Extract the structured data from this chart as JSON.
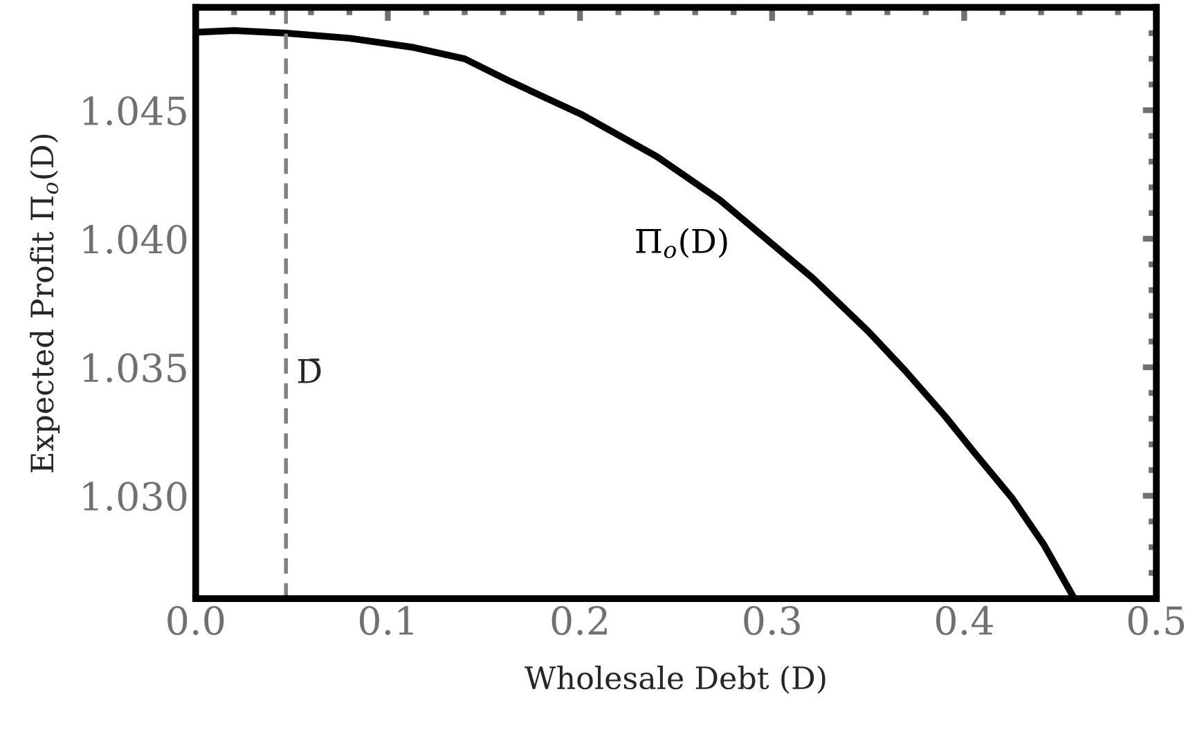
{
  "chart_data": {
    "type": "line",
    "xlabel": "Wholesale Debt (D)",
    "ylabel": "Expected Profit Π$_{o}$(D)",
    "xlim": [
      0,
      0.5
    ],
    "ylim": [
      1.026,
      1.049
    ],
    "xticks": [
      {
        "value": 0,
        "label": "0.0"
      },
      0.1,
      0.2,
      0.3,
      0.4,
      0.5
    ],
    "yticks": [
      {
        "value": 1.03,
        "label": "1.030"
      },
      1.035,
      {
        "value": 1.04,
        "label": "1.040"
      },
      1.045
    ],
    "grid": false,
    "legend": false,
    "marker": "none",
    "line_style": "solid",
    "series": [
      {
        "name": "Π$_{o}$(D)",
        "color": "#000000",
        "x": [
          0,
          0.02,
          0.047,
          0.08,
          0.1136,
          0.14,
          0.162,
          0.2004,
          0.24,
          0.2728,
          0.3,
          0.321,
          0.35,
          0.369,
          0.39,
          0.4054,
          0.425,
          0.4416,
          0.4573
        ],
        "values": [
          1.04803,
          1.0481,
          1.048,
          1.0478,
          1.04744,
          1.047,
          1.04618,
          1.04485,
          1.0432,
          1.04151,
          1.0398,
          1.03848,
          1.0364,
          1.03489,
          1.0331,
          1.03167,
          1.0299,
          1.02808,
          1.026
        ]
      }
    ],
    "ref_lines": [
      {
        "axis": "x",
        "value": 0.047,
        "label": "D̄",
        "color": "#808080",
        "line_style": "dashed"
      }
    ]
  }
}
